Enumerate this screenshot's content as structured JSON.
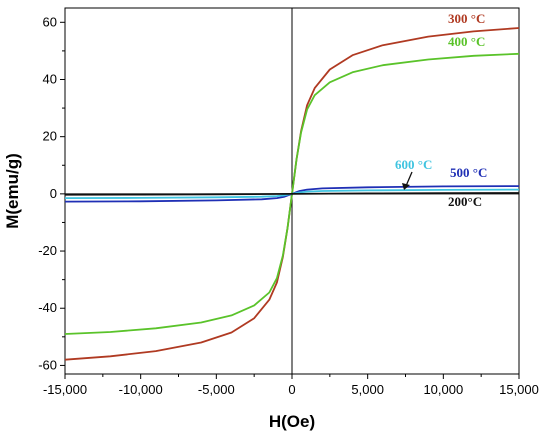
{
  "chart_data": {
    "type": "line",
    "title": "",
    "xlabel": "H(Oe)",
    "ylabel": "M(emu/g)",
    "xlim": [
      -15000,
      15000
    ],
    "ylim": [
      -63,
      65
    ],
    "x_ticks": [
      -15000,
      -10000,
      -5000,
      0,
      5000,
      10000,
      15000
    ],
    "x_tick_labels": [
      "-15,000",
      "-10,000",
      "-5,000",
      "0",
      "5,000",
      "10,000",
      "15,000"
    ],
    "y_ticks": [
      -60,
      -40,
      -20,
      0,
      20,
      40,
      60
    ],
    "y_tick_labels": [
      "-60",
      "-40",
      "-20",
      "0",
      "20",
      "40",
      "60"
    ],
    "grid": false,
    "legend": "none",
    "annotation_arrow": "from 600 °C label to its curve",
    "series": [
      {
        "name": "300 °C",
        "color": "#b03a22",
        "x": [
          -15000,
          -12000,
          -9000,
          -6000,
          -4000,
          -2500,
          -1500,
          -1000,
          -600,
          -300,
          0,
          300,
          600,
          1000,
          1500,
          2500,
          4000,
          6000,
          9000,
          12000,
          15000
        ],
        "y": [
          -58.0,
          -56.8,
          -55.0,
          -52.0,
          -48.5,
          -43.5,
          -37.0,
          -31.0,
          -22.0,
          -12.0,
          0,
          12.0,
          22.0,
          31.0,
          37.0,
          43.5,
          48.5,
          52.0,
          55.0,
          56.8,
          58.0
        ]
      },
      {
        "name": "400 °C",
        "color": "#5ac32a",
        "x": [
          -15000,
          -12000,
          -9000,
          -6000,
          -4000,
          -2500,
          -1500,
          -1000,
          -600,
          -300,
          0,
          300,
          600,
          1000,
          1500,
          2500,
          4000,
          6000,
          9000,
          12000,
          15000
        ],
        "y": [
          -49.0,
          -48.3,
          -47.0,
          -45.0,
          -42.5,
          -39.0,
          -34.5,
          -29.5,
          -21.5,
          -12.0,
          0,
          12.0,
          21.5,
          29.5,
          34.5,
          39.0,
          42.5,
          45.0,
          47.0,
          48.3,
          49.0
        ]
      },
      {
        "name": "500 °C",
        "color": "#1f2fb5",
        "x": [
          -15000,
          -10000,
          -5000,
          -2000,
          -1000,
          -500,
          0,
          500,
          1000,
          2000,
          5000,
          10000,
          15000
        ],
        "y": [
          -2.7,
          -2.6,
          -2.3,
          -1.9,
          -1.5,
          -1.0,
          0,
          1.0,
          1.5,
          1.9,
          2.3,
          2.6,
          2.7
        ]
      },
      {
        "name": "600 °C",
        "color": "#3fc4e0",
        "x": [
          -15000,
          -10000,
          -5000,
          -2000,
          -1000,
          -500,
          0,
          500,
          1000,
          2000,
          5000,
          10000,
          15000
        ],
        "y": [
          -1.5,
          -1.4,
          -1.2,
          -1.0,
          -0.8,
          -0.5,
          0,
          0.5,
          0.8,
          1.0,
          1.2,
          1.4,
          1.5
        ]
      },
      {
        "name": "200°C",
        "color": "#111111",
        "x": [
          -15000,
          -10000,
          -5000,
          0,
          5000,
          10000,
          15000
        ],
        "y": [
          -0.3,
          -0.25,
          -0.15,
          0,
          0.15,
          0.25,
          0.3
        ]
      }
    ]
  }
}
